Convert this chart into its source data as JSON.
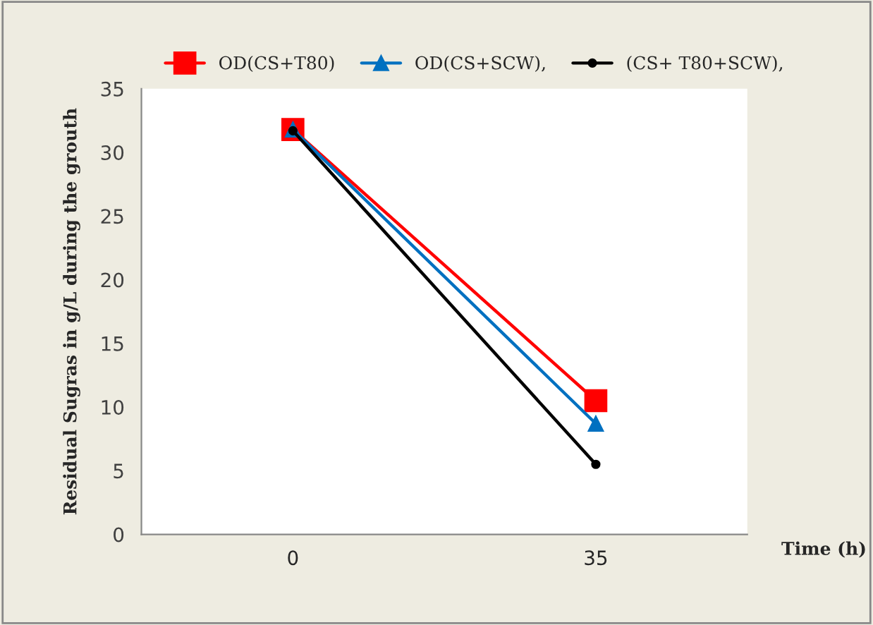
{
  "chart_data": {
    "type": "line",
    "xlabel": "Time (h)",
    "ylabel": "Residual Sugras in g/L during the grouth",
    "categories": [
      "0",
      "35"
    ],
    "series": [
      {
        "name": "OD(CS+T80)",
        "color": "#ff0000",
        "marker": "square",
        "values": [
          31.8,
          10.5
        ]
      },
      {
        "name": "OD(CS+SCW),",
        "color": "#0070c0",
        "marker": "triangle",
        "values": [
          31.8,
          8.7
        ]
      },
      {
        "name": "(CS+ T80+SCW),",
        "color": "#000000",
        "marker": "circle",
        "values": [
          31.7,
          5.5
        ]
      }
    ],
    "ylim": [
      0,
      35
    ],
    "yticks": [
      0,
      5,
      10,
      15,
      20,
      25,
      30,
      35
    ],
    "grid": false,
    "legend": "top",
    "line_style": "solid"
  }
}
